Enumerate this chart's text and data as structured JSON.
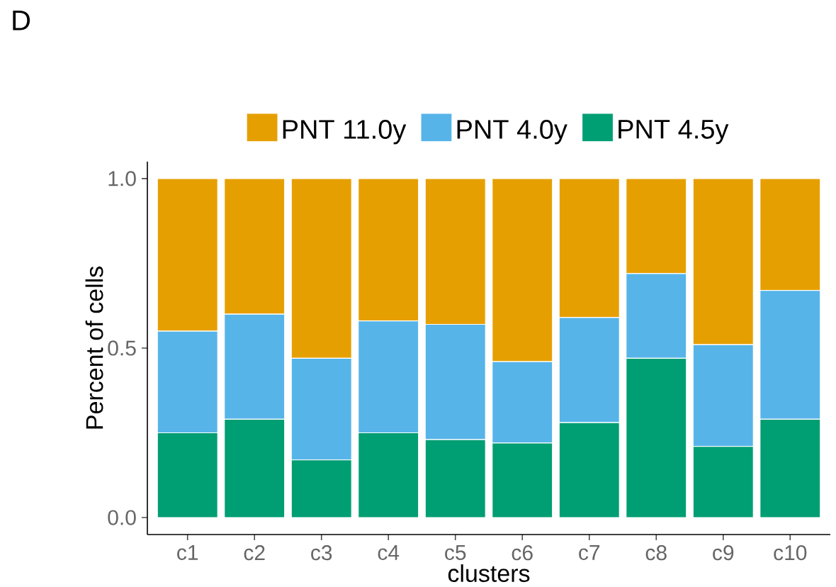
{
  "chart_data": {
    "type": "bar",
    "title": "D",
    "xlabel": "clusters",
    "ylabel": "Percent of cells",
    "categories": [
      "c1",
      "c2",
      "c3",
      "c4",
      "c5",
      "c6",
      "c7",
      "c8",
      "c9",
      "c10"
    ],
    "stacked": true,
    "legend": "top",
    "series": [
      {
        "name": "PNT 4.5y",
        "color": "#009e73",
        "values": [
          0.25,
          0.29,
          0.17,
          0.25,
          0.23,
          0.22,
          0.28,
          0.47,
          0.21,
          0.29
        ]
      },
      {
        "name": "PNT 4.0y",
        "color": "#56b4e9",
        "values": [
          0.3,
          0.31,
          0.3,
          0.33,
          0.34,
          0.24,
          0.31,
          0.25,
          0.3,
          0.38
        ]
      },
      {
        "name": "PNT 11.0y",
        "color": "#e69f00",
        "values": [
          0.45,
          0.4,
          0.53,
          0.42,
          0.43,
          0.54,
          0.41,
          0.28,
          0.49,
          0.33
        ]
      }
    ],
    "ylim": [
      -0.05,
      1.05
    ],
    "yticks": [
      {
        "value": 0,
        "label": "0.0"
      },
      {
        "value": 0.5,
        "label": "0.5"
      },
      {
        "value": 1,
        "label": "1.0"
      }
    ]
  }
}
